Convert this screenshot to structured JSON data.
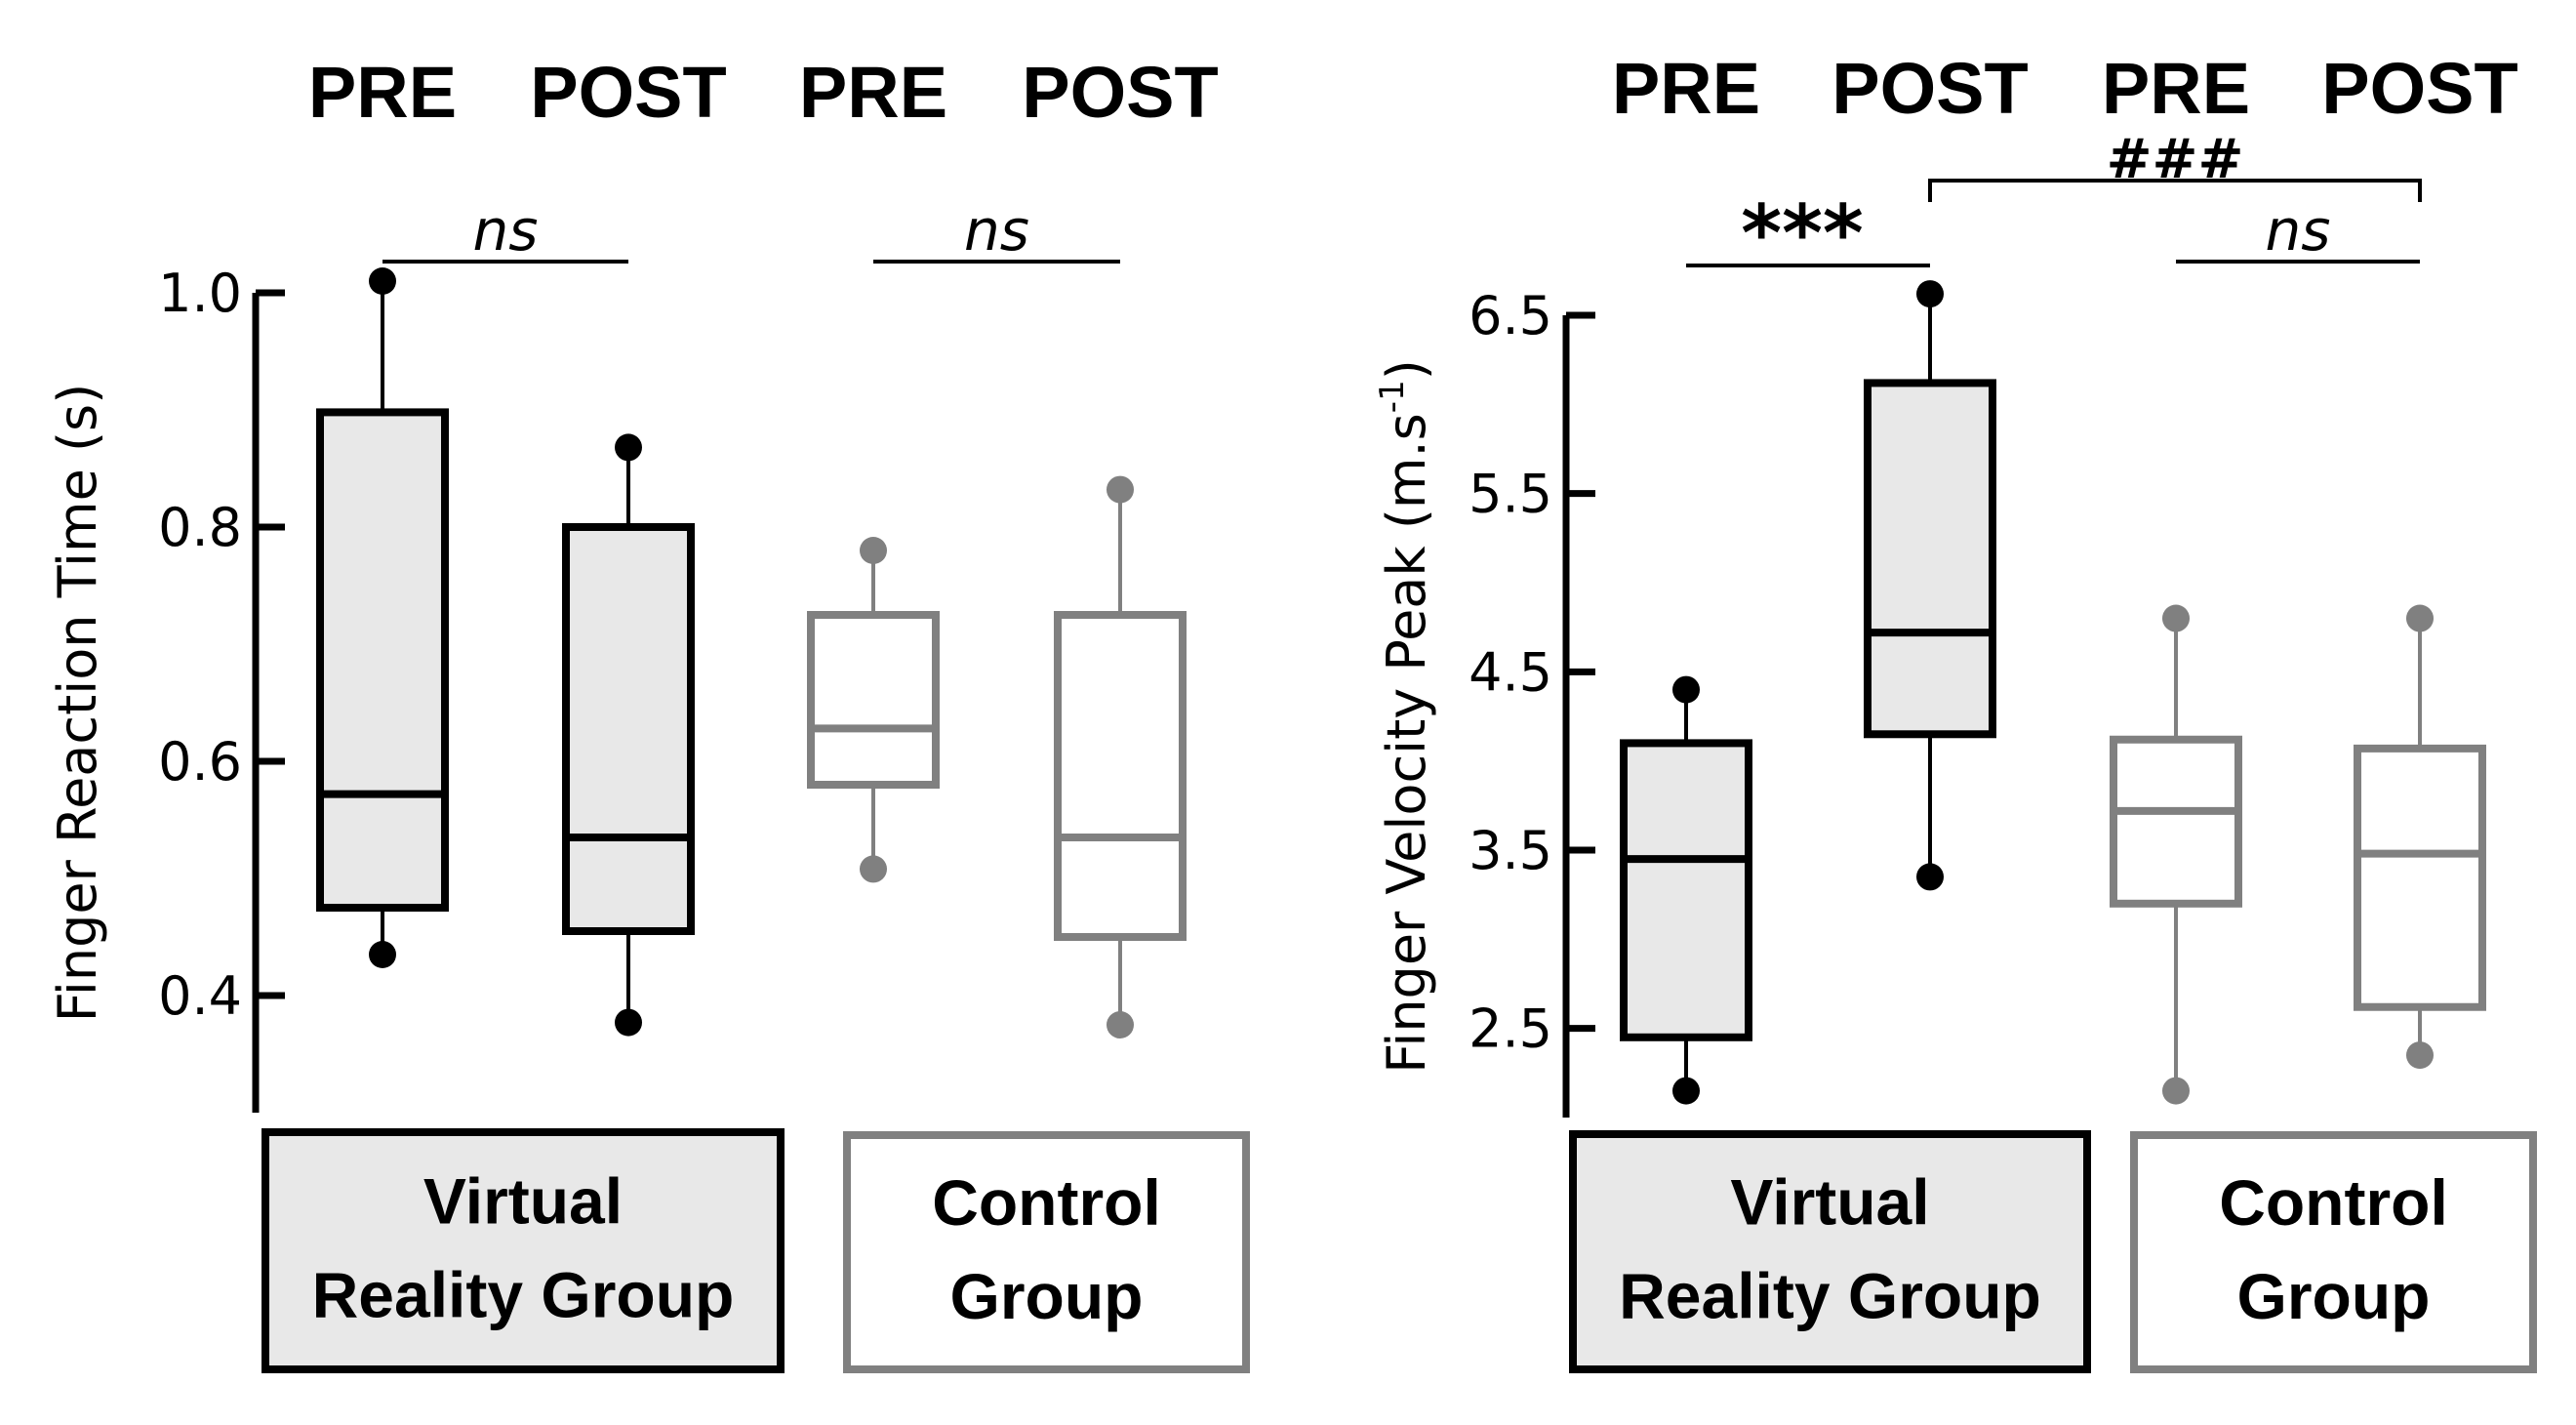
{
  "chart_data": [
    {
      "type": "box",
      "ylabel": "Finger Reaction Time  (s)",
      "ylabel_superscript": "",
      "ylabel_tail": "",
      "ylim": [
        0.3,
        1.0
      ],
      "yticks": [
        0.4,
        0.6,
        0.8,
        1.0
      ],
      "ytick_labels": [
        "0.4",
        "0.6",
        "0.8",
        "1.0"
      ],
      "column_labels": [
        "PRE",
        "POST",
        "PRE",
        "POST"
      ],
      "groups": [
        {
          "name": "Virtual Reality Group",
          "label_lines": [
            "Virtual",
            "Reality Group"
          ],
          "color": "#000000",
          "fill": "#e8e8e8"
        },
        {
          "name": "Control Group",
          "label_lines": [
            "Control",
            "Group"
          ],
          "color": "#808080",
          "fill": "#ffffff"
        }
      ],
      "series": [
        {
          "group": 0,
          "name": "PRE",
          "whisker_low": 0.435,
          "q1": 0.475,
          "median": 0.572,
          "q3": 0.898,
          "whisker_high": 1.01
        },
        {
          "group": 0,
          "name": "POST",
          "whisker_low": 0.377,
          "q1": 0.455,
          "median": 0.535,
          "q3": 0.8,
          "whisker_high": 0.868
        },
        {
          "group": 1,
          "name": "PRE",
          "whisker_low": 0.508,
          "q1": 0.58,
          "median": 0.628,
          "q3": 0.725,
          "whisker_high": 0.78
        },
        {
          "group": 1,
          "name": "POST",
          "whisker_low": 0.375,
          "q1": 0.45,
          "median": 0.535,
          "q3": 0.725,
          "whisker_high": 0.832
        }
      ],
      "annotations": [
        {
          "from": 0,
          "to": 1,
          "text": "ns",
          "style": "ns"
        },
        {
          "from": 2,
          "to": 3,
          "text": "ns",
          "style": "ns"
        }
      ]
    },
    {
      "type": "box",
      "ylabel": "Finger Velocity Peak  (m.s",
      "ylabel_superscript": "-1",
      "ylabel_tail": ")",
      "ylim": [
        2.0,
        6.5
      ],
      "yticks": [
        2.5,
        3.5,
        4.5,
        5.5,
        6.5
      ],
      "ytick_labels": [
        "2.5",
        "3.5",
        "4.5",
        "5.5",
        "6.5"
      ],
      "column_labels": [
        "PRE",
        "POST",
        "PRE",
        "POST"
      ],
      "groups": [
        {
          "name": "Virtual Reality Group",
          "label_lines": [
            "Virtual",
            "Reality Group"
          ],
          "color": "#000000",
          "fill": "#e8e8e8"
        },
        {
          "name": "Control Group",
          "label_lines": [
            "Control",
            "Group"
          ],
          "color": "#808080",
          "fill": "#ffffff"
        }
      ],
      "series": [
        {
          "group": 0,
          "name": "PRE",
          "whisker_low": 2.15,
          "q1": 2.45,
          "median": 3.45,
          "q3": 4.1,
          "whisker_high": 4.4
        },
        {
          "group": 0,
          "name": "POST",
          "whisker_low": 3.35,
          "q1": 4.15,
          "median": 4.72,
          "q3": 6.12,
          "whisker_high": 6.62
        },
        {
          "group": 1,
          "name": "PRE",
          "whisker_low": 2.15,
          "q1": 3.2,
          "median": 3.72,
          "q3": 4.12,
          "whisker_high": 4.8
        },
        {
          "group": 1,
          "name": "POST",
          "whisker_low": 2.35,
          "q1": 2.62,
          "median": 3.48,
          "q3": 4.07,
          "whisker_high": 4.8
        }
      ],
      "annotations": [
        {
          "from": 0,
          "to": 1,
          "text": "***",
          "style": "star"
        },
        {
          "from": 2,
          "to": 3,
          "text": "ns",
          "style": "ns"
        },
        {
          "from": 1,
          "to": 3,
          "text": "###",
          "style": "hash"
        }
      ]
    }
  ]
}
